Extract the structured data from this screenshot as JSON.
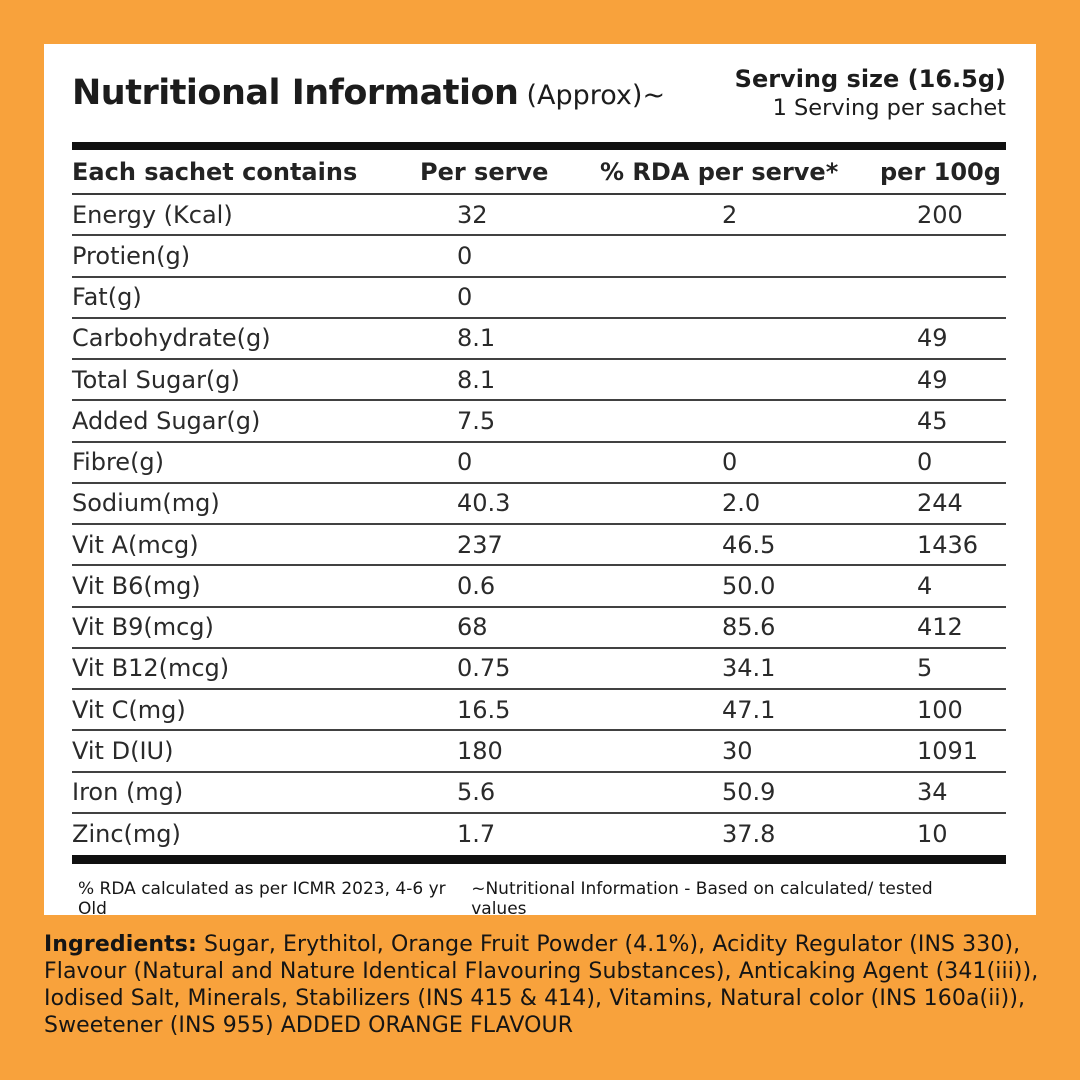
{
  "colors": {
    "background_orange": "#F8A23C",
    "card_white": "#FFFFFF",
    "rule_black": "#101010",
    "rule_gray": "#414141",
    "text_dark": "#1C1C1C"
  },
  "header": {
    "title": "Nutritional Information",
    "title_suffix": "(Approx)~",
    "serving_size": "Serving size (16.5g)",
    "servings_per_sachet": "1 Serving per sachet"
  },
  "table": {
    "columns": [
      "Each sachet contains",
      "Per serve",
      "% RDA per serve*",
      "per 100g"
    ],
    "rows": [
      {
        "label": "Energy (Kcal)",
        "per_serve": "32",
        "rda_per_serve": "2",
        "per_100g": "200"
      },
      {
        "label": "Protien(g)",
        "per_serve": "0",
        "rda_per_serve": "",
        "per_100g": ""
      },
      {
        "label": "Fat(g)",
        "per_serve": "0",
        "rda_per_serve": "",
        "per_100g": ""
      },
      {
        "label": "Carbohydrate(g)",
        "per_serve": "8.1",
        "rda_per_serve": "",
        "per_100g": "49"
      },
      {
        "label": "Total Sugar(g)",
        "per_serve": "8.1",
        "rda_per_serve": "",
        "per_100g": "49"
      },
      {
        "label": "Added Sugar(g)",
        "per_serve": "7.5",
        "rda_per_serve": "",
        "per_100g": "45"
      },
      {
        "label": "Fibre(g)",
        "per_serve": "0",
        "rda_per_serve": "0",
        "per_100g": "0"
      },
      {
        "label": "Sodium(mg)",
        "per_serve": "40.3",
        "rda_per_serve": "2.0",
        "per_100g": "244"
      },
      {
        "label": "Vit A(mcg)",
        "per_serve": "237",
        "rda_per_serve": "46.5",
        "per_100g": "1436"
      },
      {
        "label": "Vit B6(mg)",
        "per_serve": "0.6",
        "rda_per_serve": "50.0",
        "per_100g": "4"
      },
      {
        "label": "Vit B9(mcg)",
        "per_serve": "68",
        "rda_per_serve": "85.6",
        "per_100g": "412"
      },
      {
        "label": "Vit B12(mcg)",
        "per_serve": "0.75",
        "rda_per_serve": "34.1",
        "per_100g": "5"
      },
      {
        "label": "Vit C(mg)",
        "per_serve": "16.5",
        "rda_per_serve": "47.1",
        "per_100g": "100"
      },
      {
        "label": "Vit D(IU)",
        "per_serve": "180",
        "rda_per_serve": "30",
        "per_100g": "1091"
      },
      {
        "label": "Iron (mg)",
        "per_serve": "5.6",
        "rda_per_serve": "50.9",
        "per_100g": "34"
      },
      {
        "label": "Zinc(mg)",
        "per_serve": "1.7",
        "rda_per_serve": "37.8",
        "per_100g": "10"
      }
    ]
  },
  "footnotes": {
    "rda_note": "% RDA calculated as per ICMR 2023, 4-6 yr Old",
    "tested_note": "~Nutritional Information - Based on calculated/ tested values"
  },
  "ingredients": {
    "label": "Ingredients:",
    "text": " Sugar, Erythitol, Orange Fruit Powder (4.1%), Acidity Regulator (INS 330), Flavour (Natural and Nature Identical Flavouring Substances), Anticaking Agent (341(iii)), Iodised Salt, Minerals, Stabilizers (INS 415 & 414), Vitamins, Natural color (INS 160a(ii)), Sweetener (INS 955) ADDED ORANGE FLAVOUR"
  }
}
